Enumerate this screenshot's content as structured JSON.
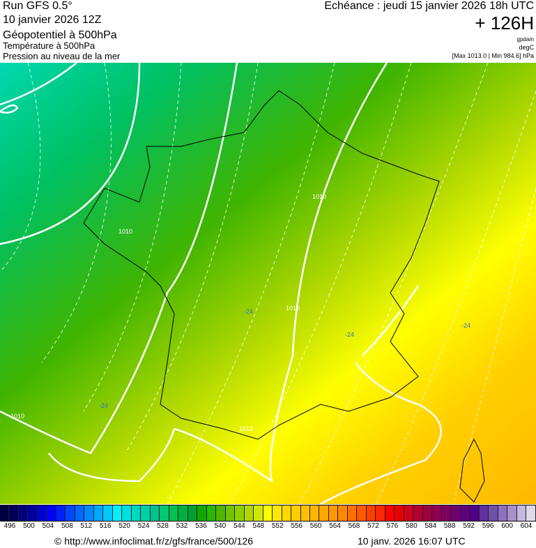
{
  "header": {
    "run": "Run GFS 0.5°",
    "run_date": "10 janvier 2026 12Z",
    "param1": "Géopotentiel à 500hPa",
    "param2": "Température à 500hPa",
    "param3": "Pression au niveau de la mer",
    "echeance": "Echéance : jeudi 15 janvier 2026 18h UTC",
    "lead": "+ 126H",
    "unit1": "gpdam",
    "unit2": "degC",
    "pressure_range": "[Max 1013.0 | Min 984.6] hPa"
  },
  "map": {
    "isobar_labels": [
      "1010",
      "1010",
      "1010",
      "1010",
      "1010"
    ],
    "temp_labels": [
      "-24",
      "-24",
      "-24",
      "-24"
    ],
    "colors": {
      "northwest": "#00c890",
      "mid": "#60c000",
      "south": "#ffe000",
      "southeast": "#ffb800",
      "isobar": "#ffffff",
      "coast": "#000000"
    }
  },
  "colorbar": {
    "labels": [
      "496",
      "500",
      "504",
      "508",
      "512",
      "516",
      "520",
      "524",
      "528",
      "532",
      "536",
      "540",
      "544",
      "548",
      "552",
      "556",
      "560",
      "564",
      "568",
      "572",
      "576",
      "580",
      "584",
      "588",
      "592",
      "596",
      "600",
      "604"
    ],
    "colors": [
      "#000040",
      "#000058",
      "#000080",
      "#0000a0",
      "#0000d0",
      "#0000ff",
      "#0020ff",
      "#0048ff",
      "#0068ff",
      "#0088ff",
      "#00a8ff",
      "#00c8ff",
      "#00f0ff",
      "#00e0e0",
      "#00d8c0",
      "#00d0a8",
      "#00c090",
      "#00c870",
      "#00c050",
      "#00b040",
      "#00a030",
      "#10a800",
      "#28b800",
      "#50b400",
      "#70c400",
      "#90d000",
      "#b0d800",
      "#d0e800",
      "#ffff00",
      "#ffe800",
      "#ffd800",
      "#ffcc00",
      "#ffc000",
      "#ffb400",
      "#ffa800",
      "#ff9800",
      "#ff8800",
      "#ff7000",
      "#ff5800",
      "#ff4000",
      "#ff2800",
      "#ff0000",
      "#e80000",
      "#d00020",
      "#b00030",
      "#a00040",
      "#900050",
      "#800060",
      "#700070",
      "#600080",
      "#500088",
      "#6030a0",
      "#7050a8",
      "#9070c0",
      "#a890c8",
      "#c8b8e0",
      "#e0d8e8"
    ]
  },
  "footer": {
    "url": "© http://www.infoclimat.fr/z/gfs/france/500/126",
    "timestamp": "10 janv. 2026 16:07 UTC"
  }
}
